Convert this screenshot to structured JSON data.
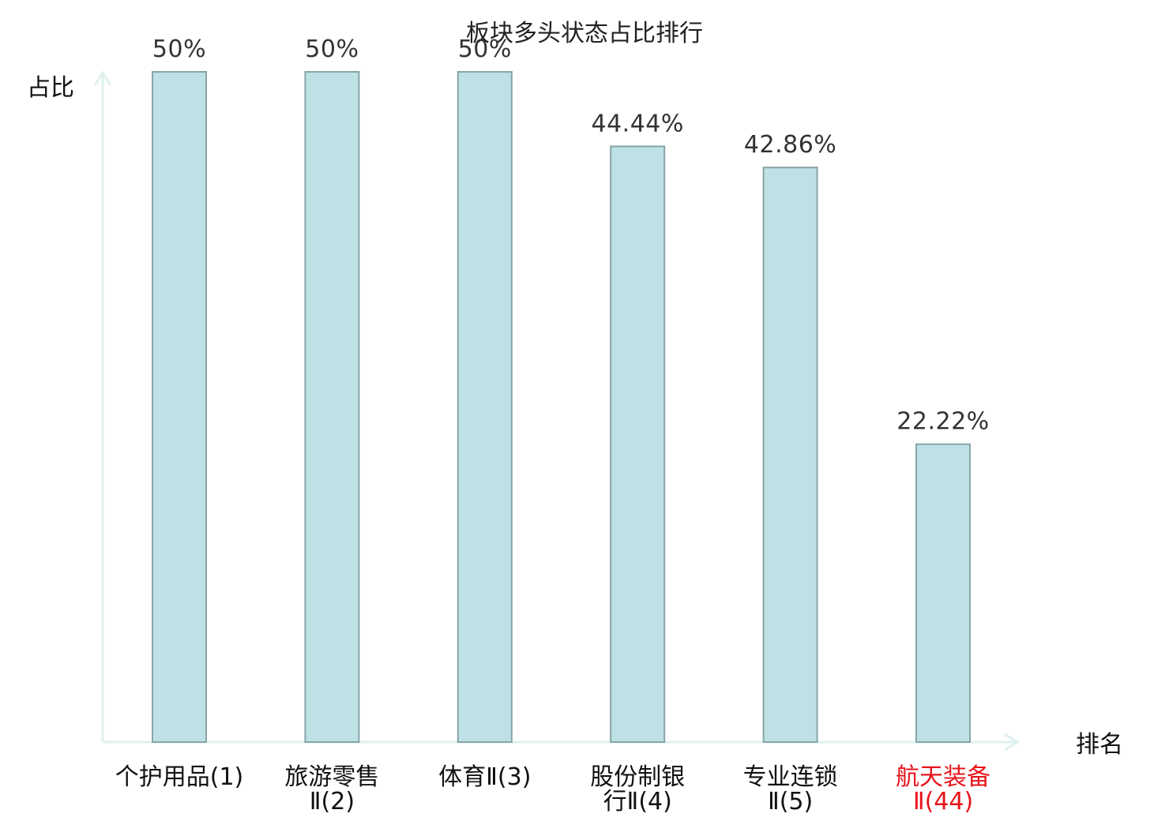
{
  "chart_data": {
    "type": "bar",
    "title": "板块多头状态占比排行",
    "xlabel": "排名",
    "ylabel": "占比",
    "categories": [
      [
        "个护用品(1)"
      ],
      [
        "旅游零售",
        "Ⅱ(2)"
      ],
      [
        "体育Ⅱ(3)"
      ],
      [
        "股份制银",
        "行Ⅱ(4)"
      ],
      [
        "专业连锁",
        "Ⅱ(5)"
      ],
      [
        "航天装备",
        "Ⅱ(44)"
      ]
    ],
    "values": [
      50,
      50,
      50,
      44.44,
      42.86,
      22.22
    ],
    "value_labels": [
      "50%",
      "50%",
      "50%",
      "44.44%",
      "42.86%",
      "22.22%"
    ],
    "highlight_index": 5,
    "ylim": [
      0,
      50
    ],
    "grid": false,
    "colors": {
      "bar_fill": "#bde1e4",
      "bar_stroke": "#87a5a8",
      "axis": "#dff1ef",
      "label_text": "#111111",
      "highlight_text": "#e8141b"
    }
  }
}
